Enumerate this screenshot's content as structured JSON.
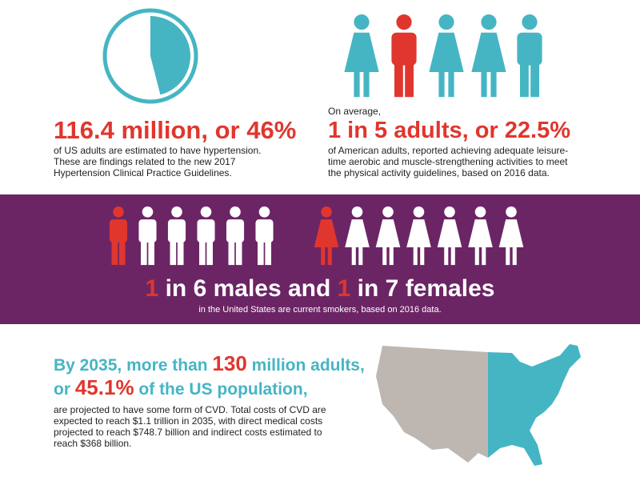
{
  "hypertension": {
    "headline": "116.4 million, or ",
    "pie": {
      "value": 46,
      "label": "46%"
    },
    "body": [
      "of US adults are estimated to have hypertension.",
      "These are findings related to the new 2017",
      "Hypertension Clinical Practice Guidelines."
    ]
  },
  "activity": {
    "intro": "On average,",
    "headline": "1 in 5 adults, or 22.5%",
    "body": [
      "of American adults, reported achieving adequate leisure-",
      "time aerobic and muscle-strengthening activities to meet",
      "the physical activity guidelines, based on 2016 data."
    ]
  },
  "smoking": {
    "headline": [
      "1",
      " in 6 males and ",
      "1",
      " in 7 females"
    ],
    "subtitle": "in the United States are current smokers, based on 2016 data."
  },
  "cvd": {
    "headline": [
      [
        "By 2035, more than ",
        "130",
        " million adults,"
      ],
      [
        "or ",
        "45.1%",
        " of the US population,"
      ]
    ],
    "body": [
      "are projected to have some form of CVD. Total costs of CVD are",
      "expected to reach $1.1 trillion in 2035, with direct medical costs",
      "projected to reach $748.7 billion and indirect costs estimated to",
      "reach $368 billion."
    ]
  }
}
